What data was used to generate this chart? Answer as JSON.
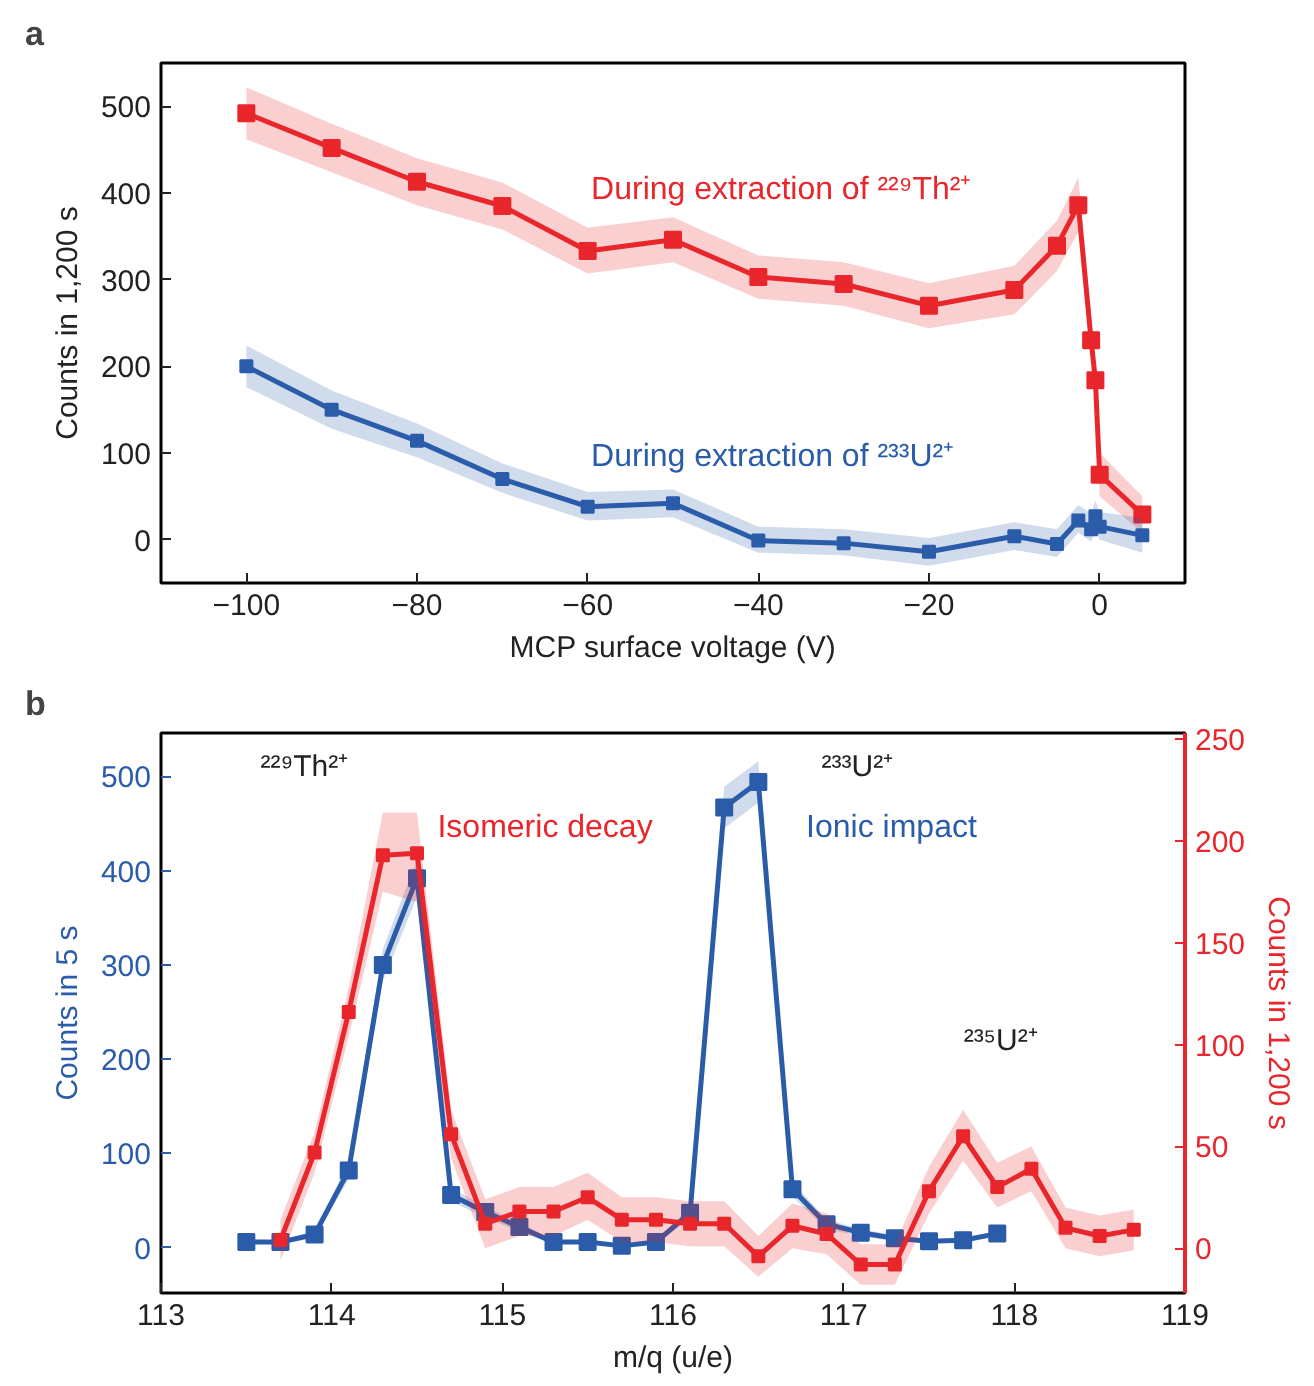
{
  "chart_data": [
    {
      "type": "line",
      "title": "a",
      "xlabel": "MCP surface voltage (V)",
      "ylabel": "Counts in 1,200 s",
      "xlim": [
        -110,
        10
      ],
      "ylim": [
        -50,
        550
      ],
      "xticks": [
        -100,
        -80,
        -60,
        -40,
        -20,
        0
      ],
      "yticks": [
        0,
        100,
        200,
        300,
        400,
        500
      ],
      "x": [
        -100,
        -90,
        -80,
        -70,
        -60,
        -50,
        -40,
        -30,
        -20,
        -10,
        -5,
        -2.5,
        -1,
        -0.5,
        0,
        5
      ],
      "marker": "square",
      "line_style": "solid",
      "grid": false,
      "series": [
        {
          "name": "During extraction of ²²⁹Th²⁺",
          "color": "#e8262b",
          "values": [
            492,
            452,
            413,
            385,
            333,
            346,
            303,
            295,
            270,
            288,
            339,
            386,
            230,
            184,
            75,
            29
          ],
          "lower": [
            462,
            424,
            386,
            358,
            307,
            320,
            278,
            270,
            244,
            260,
            310,
            355,
            205,
            160,
            50,
            8
          ],
          "upper": [
            522,
            480,
            440,
            412,
            360,
            372,
            328,
            320,
            296,
            316,
            368,
            418,
            255,
            208,
            100,
            50
          ]
        },
        {
          "name": "During extraction of ²³³U²⁺",
          "color": "#2a5caa",
          "values": [
            200,
            150,
            114,
            70,
            38,
            42,
            -1,
            -4,
            -14,
            4,
            -5,
            22,
            12,
            27,
            15,
            5
          ],
          "lower": [
            176,
            128,
            95,
            54,
            22,
            26,
            -15,
            -18,
            -30,
            -12,
            -20,
            8,
            -2,
            10,
            0,
            -15
          ],
          "upper": [
            224,
            172,
            134,
            88,
            55,
            58,
            15,
            12,
            2,
            20,
            12,
            40,
            30,
            45,
            32,
            25
          ]
        }
      ]
    },
    {
      "type": "line",
      "title": "b",
      "xlabel": "m/q (u/e)",
      "ylabel": "Counts in 5 s",
      "y2label": "Counts in 1,200 s",
      "xlim": [
        113,
        119
      ],
      "ylim": [
        -48,
        546
      ],
      "y2lim": [
        -22,
        253
      ],
      "xticks": [
        113,
        114,
        115,
        116,
        117,
        118,
        119
      ],
      "yticks": [
        0,
        100,
        200,
        300,
        400,
        500
      ],
      "y2ticks": [
        0,
        50,
        100,
        150,
        200,
        250
      ],
      "marker": "square",
      "line_style": "solid",
      "grid": false,
      "annotations": [
        "²²⁹Th²⁺",
        "²³³U²⁺",
        "²³⁵U²⁺"
      ],
      "series": [
        {
          "name": "Ionic impact",
          "color": "#2a5caa",
          "x": [
            113.5,
            113.7,
            113.9,
            114.1,
            114.3,
            114.5,
            114.7,
            114.9,
            115.1,
            115.3,
            115.5,
            115.7,
            115.9,
            116.1,
            116.3,
            116.5,
            116.7,
            116.9,
            117.1,
            117.3,
            117.5,
            117.7,
            117.9
          ],
          "values": [
            6,
            6,
            14,
            82,
            300,
            392,
            56,
            38,
            22,
            6,
            6,
            2,
            6,
            37,
            467,
            494,
            62,
            25,
            16,
            10,
            7,
            8,
            15
          ],
          "lower": [
            4,
            4,
            10,
            73,
            283,
            372,
            49,
            32,
            17,
            4,
            4,
            1,
            4,
            31,
            445,
            472,
            54,
            20,
            12,
            7,
            5,
            6,
            12
          ],
          "upper": [
            8,
            8,
            18,
            91,
            317,
            412,
            63,
            44,
            27,
            8,
            8,
            3,
            8,
            43,
            489,
            516,
            70,
            30,
            20,
            13,
            9,
            10,
            18
          ]
        },
        {
          "name": "Isomeric decay",
          "color": "#e8262b",
          "axis": "y2",
          "x": [
            113.7,
            113.9,
            114.1,
            114.3,
            114.5,
            114.7,
            114.9,
            115.1,
            115.3,
            115.5,
            115.7,
            115.9,
            116.1,
            116.3,
            116.5,
            116.7,
            116.9,
            117.1,
            117.3,
            117.5,
            117.7,
            117.9,
            118.1,
            118.3,
            118.5,
            118.7
          ],
          "values": [
            4,
            47,
            116,
            193,
            194,
            56,
            12,
            18,
            18,
            25,
            14,
            14,
            12,
            12,
            -4,
            11,
            7,
            -8,
            -8,
            28,
            55,
            30,
            39,
            10,
            6,
            9
          ],
          "lower": [
            -6,
            37,
            104,
            175,
            170,
            44,
            0,
            6,
            6,
            14,
            3,
            3,
            1,
            1,
            -14,
            0,
            -3,
            -18,
            -18,
            17,
            43,
            20,
            28,
            0,
            -4,
            -1
          ],
          "upper": [
            14,
            57,
            128,
            214,
            214,
            68,
            24,
            30,
            30,
            37,
            25,
            25,
            23,
            23,
            6,
            22,
            17,
            2,
            2,
            40,
            68,
            42,
            50,
            20,
            16,
            19
          ]
        }
      ]
    }
  ]
}
